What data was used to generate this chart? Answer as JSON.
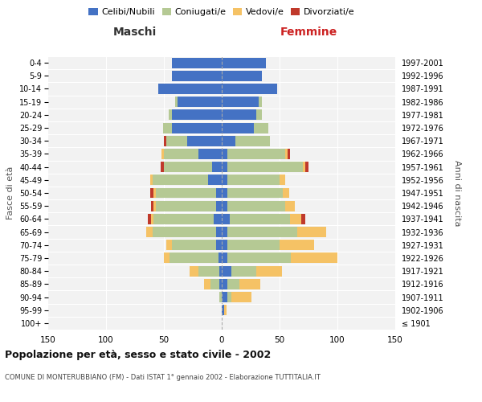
{
  "age_groups": [
    "100+",
    "95-99",
    "90-94",
    "85-89",
    "80-84",
    "75-79",
    "70-74",
    "65-69",
    "60-64",
    "55-59",
    "50-54",
    "45-49",
    "40-44",
    "35-39",
    "30-34",
    "25-29",
    "20-24",
    "15-19",
    "10-14",
    "5-9",
    "0-4"
  ],
  "birth_years": [
    "≤ 1901",
    "1902-1906",
    "1907-1911",
    "1912-1916",
    "1917-1921",
    "1922-1926",
    "1927-1931",
    "1932-1936",
    "1937-1941",
    "1942-1946",
    "1947-1951",
    "1952-1956",
    "1957-1961",
    "1962-1966",
    "1967-1971",
    "1972-1976",
    "1977-1981",
    "1982-1986",
    "1987-1991",
    "1992-1996",
    "1997-2001"
  ],
  "male": {
    "celibe": [
      0,
      0,
      0,
      2,
      2,
      3,
      5,
      5,
      7,
      5,
      5,
      12,
      8,
      20,
      30,
      43,
      43,
      38,
      55,
      43,
      43
    ],
    "coniugato": [
      0,
      0,
      2,
      8,
      18,
      42,
      38,
      55,
      52,
      52,
      52,
      48,
      42,
      30,
      18,
      8,
      3,
      2,
      0,
      0,
      0
    ],
    "vedovo": [
      0,
      0,
      0,
      5,
      8,
      5,
      5,
      5,
      2,
      2,
      2,
      2,
      0,
      2,
      0,
      0,
      0,
      0,
      0,
      0,
      0
    ],
    "divorziato": [
      0,
      0,
      0,
      0,
      0,
      0,
      0,
      0,
      3,
      2,
      3,
      0,
      3,
      0,
      2,
      0,
      0,
      0,
      0,
      0,
      0
    ]
  },
  "female": {
    "nubile": [
      0,
      2,
      5,
      5,
      8,
      5,
      5,
      5,
      7,
      5,
      5,
      5,
      5,
      5,
      12,
      28,
      30,
      32,
      48,
      35,
      38
    ],
    "coniugata": [
      0,
      0,
      3,
      10,
      22,
      55,
      45,
      60,
      52,
      50,
      48,
      45,
      65,
      50,
      30,
      12,
      5,
      3,
      0,
      0,
      0
    ],
    "vedova": [
      0,
      2,
      18,
      18,
      22,
      40,
      30,
      25,
      10,
      8,
      5,
      5,
      2,
      2,
      0,
      0,
      0,
      0,
      0,
      0,
      0
    ],
    "divorziata": [
      0,
      0,
      0,
      0,
      0,
      0,
      0,
      0,
      3,
      0,
      0,
      0,
      3,
      2,
      0,
      0,
      0,
      0,
      0,
      0,
      0
    ]
  },
  "colors": {
    "celibe": "#4472C4",
    "coniugato": "#B5C994",
    "vedovo": "#F5C265",
    "divorziato": "#C0392B"
  },
  "xlim": 150,
  "title": "Popolazione per età, sesso e stato civile - 2002",
  "subtitle": "COMUNE DI MONTERUBBIANO (FM) - Dati ISTAT 1° gennaio 2002 - Elaborazione TUTTITALIA.IT",
  "xlabel_left": "Maschi",
  "xlabel_right": "Femmine",
  "ylabel_left": "Fasce di età",
  "ylabel_right": "Anni di nascita",
  "legend": [
    "Celibi/Nubili",
    "Coniugati/e",
    "Vedovi/e",
    "Divorziati/e"
  ],
  "bg_color": "#F2F2F2"
}
